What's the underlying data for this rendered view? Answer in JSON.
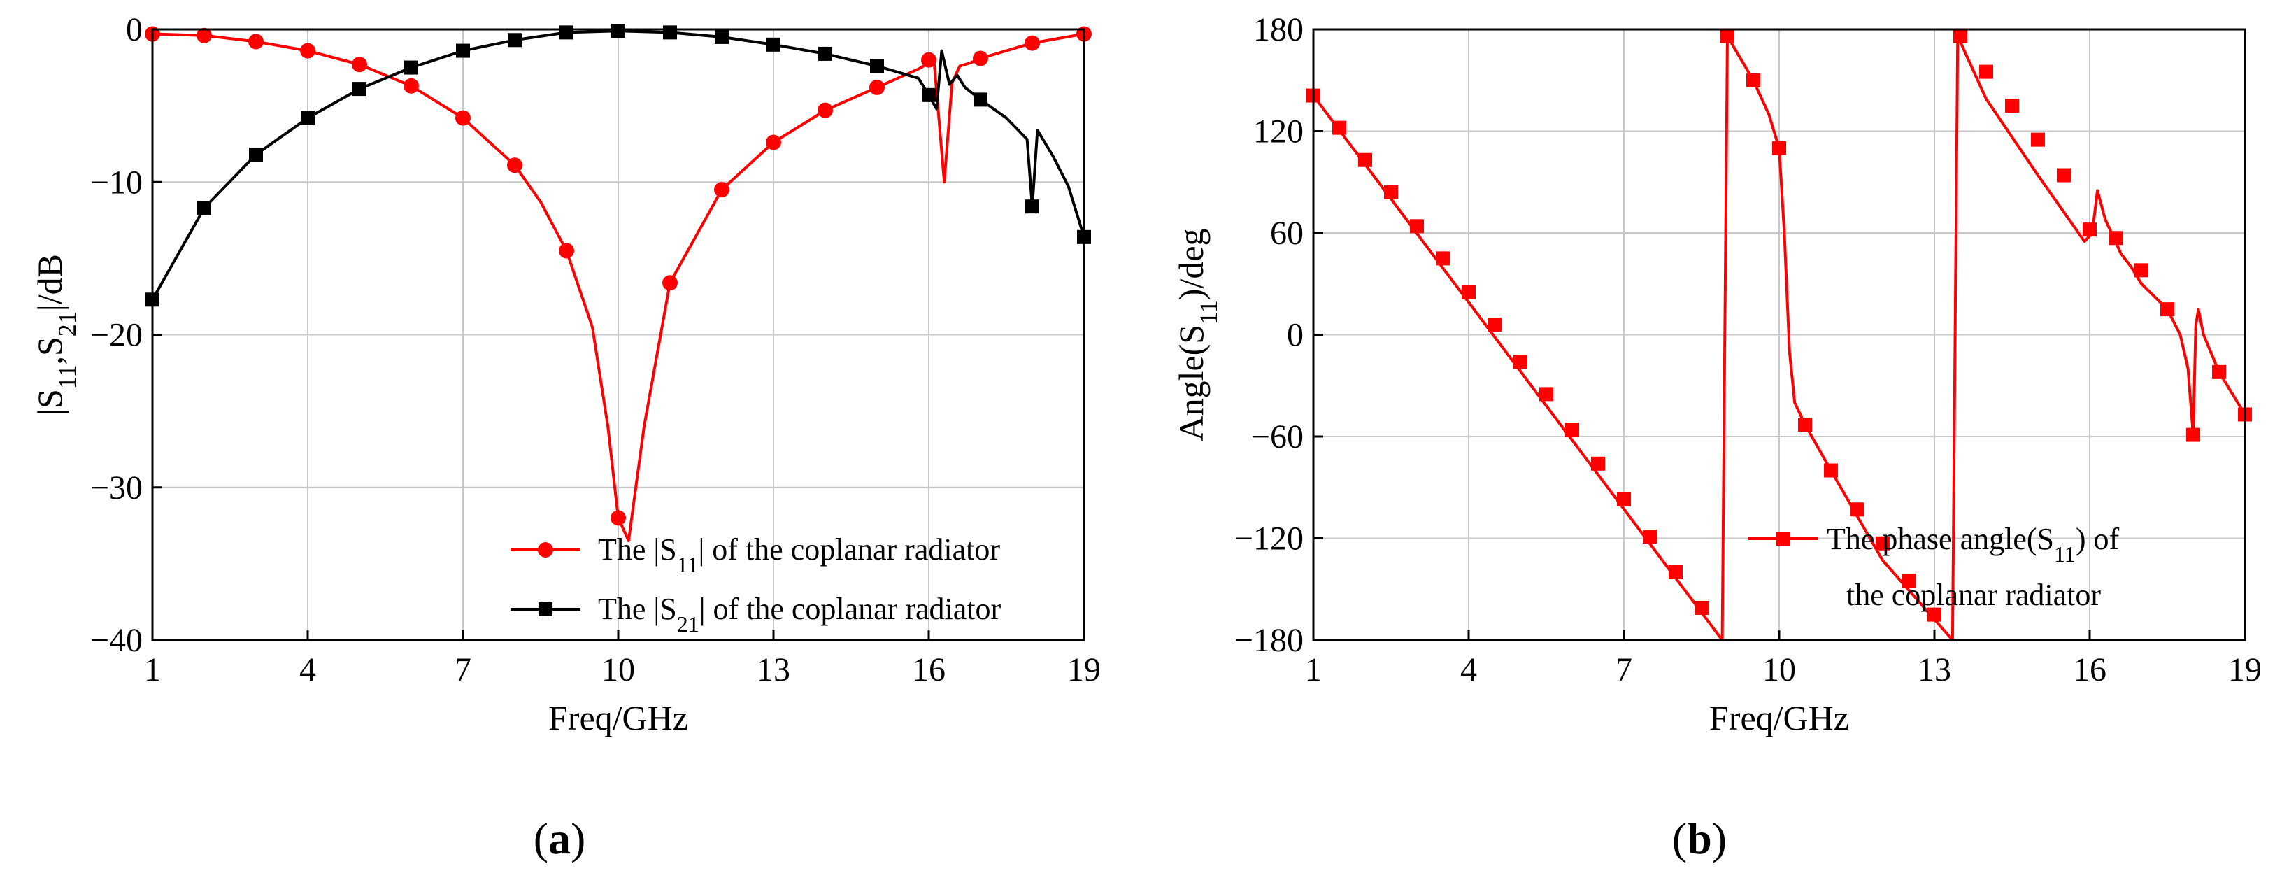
{
  "colors": {
    "s11": "#ff0000",
    "s21": "#000000",
    "grid": "#c8c8c8",
    "frame": "#000000"
  },
  "panel_labels": {
    "a": "a",
    "b": "b"
  },
  "chart_data": [
    {
      "type": "line",
      "panel": "a",
      "title": "",
      "xlabel": "Freq/GHz",
      "ylabel": "|S11,S21|/dB",
      "xlim": [
        1,
        19
      ],
      "ylim": [
        -40,
        0
      ],
      "xticks": [
        1,
        4,
        7,
        10,
        13,
        16,
        19
      ],
      "yticks": [
        -40,
        -30,
        -20,
        -10,
        0
      ],
      "xtick_labels": [
        "1",
        "4",
        "7",
        "10",
        "13",
        "16",
        "19"
      ],
      "ytick_labels": [
        "−40",
        "−30",
        "−20",
        "−10",
        "0"
      ],
      "grid": true,
      "legend_position": "bottom-right",
      "series": [
        {
          "name": "The |S11| of the coplanar radiator",
          "legend_prefix": "The |S",
          "legend_sub": "11",
          "legend_suffix": "| of the coplanar radiator",
          "marker": "circle",
          "color_key": "s11",
          "x": [
            1,
            2,
            3,
            4,
            5,
            6,
            7,
            8,
            8.5,
            9,
            9.5,
            9.8,
            10,
            10.2,
            10.5,
            11,
            12,
            13,
            14,
            15,
            15.8,
            16.1,
            16.2,
            16.3,
            16.45,
            16.6,
            16.8,
            17,
            18,
            19
          ],
          "y": [
            -0.3,
            -0.4,
            -0.8,
            -1.4,
            -2.3,
            -3.7,
            -5.8,
            -8.9,
            -11.3,
            -14.5,
            -19.5,
            -26,
            -32,
            -33.5,
            -26,
            -16.6,
            -10.5,
            -7.4,
            -5.3,
            -3.8,
            -2.6,
            -2.0,
            -6.0,
            -10.0,
            -3.5,
            -2.4,
            -2.2,
            -1.9,
            -0.9,
            -0.3
          ],
          "marker_x": [
            1,
            2,
            3,
            4,
            5,
            6,
            7,
            8,
            9,
            10,
            11,
            12,
            13,
            14,
            15,
            16,
            17,
            18,
            19
          ],
          "marker_y": [
            -0.3,
            -0.4,
            -0.8,
            -1.4,
            -2.3,
            -3.7,
            -5.8,
            -8.9,
            -14.5,
            -32,
            -16.6,
            -10.5,
            -7.4,
            -5.3,
            -3.8,
            -2.0,
            -1.9,
            -0.9,
            -0.3
          ]
        },
        {
          "name": "The |S21| of the coplanar radiator",
          "legend_prefix": "The |S",
          "legend_sub": "21",
          "legend_suffix": "| of the coplanar radiator",
          "marker": "square",
          "color_key": "s21",
          "x": [
            1,
            2,
            3,
            4,
            5,
            6,
            7,
            8,
            9,
            10,
            11,
            12,
            13,
            14,
            15,
            15.8,
            16,
            16.15,
            16.25,
            16.4,
            16.55,
            16.7,
            17,
            17.5,
            17.9,
            18,
            18.1,
            18.4,
            18.7,
            19
          ],
          "y": [
            -17.7,
            -11.7,
            -8.2,
            -5.8,
            -3.9,
            -2.5,
            -1.4,
            -0.7,
            -0.2,
            -0.1,
            -0.2,
            -0.5,
            -1.0,
            -1.6,
            -2.4,
            -3.2,
            -4.3,
            -5.2,
            -1.4,
            -3.6,
            -3.0,
            -3.8,
            -4.6,
            -5.8,
            -7.2,
            -11.6,
            -6.6,
            -8.3,
            -10.3,
            -13.6
          ],
          "marker_x": [
            1,
            2,
            3,
            4,
            5,
            6,
            7,
            8,
            9,
            10,
            11,
            12,
            13,
            14,
            15,
            16,
            17,
            18,
            19
          ],
          "marker_y": [
            -17.7,
            -11.7,
            -8.2,
            -5.8,
            -3.9,
            -2.5,
            -1.4,
            -0.7,
            -0.2,
            -0.1,
            -0.2,
            -0.5,
            -1.0,
            -1.6,
            -2.4,
            -4.3,
            -4.6,
            -11.6,
            -13.6
          ]
        }
      ]
    },
    {
      "type": "line",
      "panel": "b",
      "title": "",
      "xlabel": "Freq/GHz",
      "ylabel": "Angle(S11)/deg",
      "xlim": [
        1,
        19
      ],
      "ylim": [
        -180,
        180
      ],
      "xticks": [
        1,
        4,
        7,
        10,
        13,
        16,
        19
      ],
      "yticks": [
        -180,
        -120,
        -60,
        0,
        60,
        120,
        180
      ],
      "xtick_labels": [
        "1",
        "4",
        "7",
        "10",
        "13",
        "16",
        "19"
      ],
      "ytick_labels": [
        "−180",
        "−120",
        "−60",
        "0",
        "60",
        "120",
        "180"
      ],
      "grid": true,
      "legend_position": "center-right",
      "series": [
        {
          "name": "The phase angle(S11) of the coplanar radiator",
          "legend_prefix": "The phase angle(S",
          "legend_sub": "11",
          "legend_suffix": ") of",
          "legend_line2": "the coplanar radiator",
          "marker": "square",
          "color_key": "s11",
          "x": [
            1,
            8.9,
            8.95,
            9.0,
            9.5,
            9.8,
            10.0,
            10.1,
            10.2,
            10.3,
            10.5,
            11.0,
            12.0,
            13.35,
            13.4,
            13.45,
            14.0,
            15.0,
            15.9,
            16.05,
            16.15,
            16.3,
            16.5,
            16.6,
            16.8,
            17.0,
            17.5,
            17.75,
            17.9,
            18.0,
            18.05,
            18.1,
            18.2,
            18.5,
            19
          ],
          "y": [
            141,
            -180,
            0,
            176,
            150,
            130,
            110,
            60,
            -10,
            -40,
            -53,
            -80,
            -133,
            -180,
            0,
            176,
            139,
            94,
            55,
            60,
            85,
            68,
            55,
            48,
            40,
            30,
            15,
            0,
            -20,
            -59,
            5,
            15,
            0,
            -22,
            -47
          ],
          "marker_x": [
            1,
            1.5,
            2,
            2.5,
            3,
            3.5,
            4,
            4.5,
            5,
            5.5,
            6,
            6.5,
            7,
            7.5,
            8,
            8.5,
            9,
            9.5,
            10,
            10.5,
            11,
            11.5,
            12,
            12.5,
            13,
            13.5,
            14,
            14.5,
            15,
            15.5,
            16,
            16.5,
            17,
            17.5,
            18,
            18.5,
            19
          ],
          "marker_y": [
            141,
            122,
            103,
            84,
            64,
            45,
            25,
            6,
            -16,
            -35,
            -56,
            -76,
            -97,
            -119,
            -140,
            -161,
            176,
            150,
            110,
            -53,
            -80,
            -103,
            -123,
            -145,
            -165,
            176,
            155,
            135,
            115,
            94,
            62,
            57,
            38,
            15,
            -59,
            -22,
            -47
          ]
        }
      ]
    }
  ]
}
